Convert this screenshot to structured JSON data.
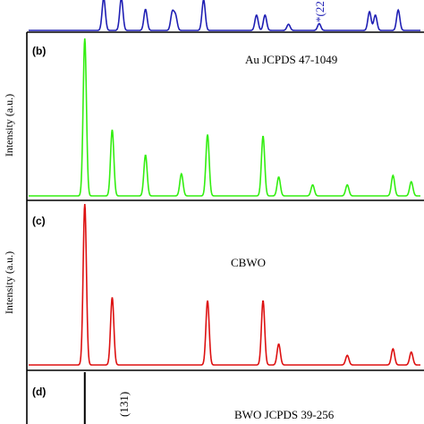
{
  "chart_data": [
    {
      "type": "line",
      "panel_label": "",
      "annotation": "",
      "ylabel": "",
      "color": "#1f1fb4",
      "peak_label": "*(22",
      "xlim": [
        20,
        80
      ],
      "peaks": [
        [
          31.5,
          0.95
        ],
        [
          34.2,
          0.95
        ],
        [
          37.9,
          0.62
        ],
        [
          42.0,
          0.52
        ],
        [
          42.5,
          0.42
        ],
        [
          46.8,
          0.9
        ],
        [
          54.9,
          0.45
        ],
        [
          56.2,
          0.45
        ],
        [
          59.8,
          0.18
        ],
        [
          64.5,
          0.2
        ],
        [
          72.2,
          0.55
        ],
        [
          73.1,
          0.45
        ],
        [
          76.6,
          0.6
        ]
      ]
    },
    {
      "type": "line",
      "panel_label": "(b)",
      "annotation": "Au JCPDS 47-1049",
      "ylabel": "Intensity (a.u.)",
      "color": "#33ee11",
      "xlim": [
        20,
        80
      ],
      "peaks": [
        [
          28.6,
          1.0
        ],
        [
          32.8,
          0.42
        ],
        [
          37.9,
          0.26
        ],
        [
          43.4,
          0.14
        ],
        [
          47.4,
          0.39
        ],
        [
          55.9,
          0.38
        ],
        [
          58.3,
          0.12
        ],
        [
          63.5,
          0.07
        ],
        [
          68.8,
          0.07
        ],
        [
          75.8,
          0.13
        ],
        [
          78.6,
          0.09
        ]
      ]
    },
    {
      "type": "line",
      "panel_label": "(c)",
      "annotation": "CBWO",
      "ylabel": "Intensity (a.u.)",
      "color": "#dd1111",
      "xlim": [
        20,
        80
      ],
      "peaks": [
        [
          28.6,
          1.0
        ],
        [
          32.8,
          0.42
        ],
        [
          47.4,
          0.4
        ],
        [
          55.9,
          0.4
        ],
        [
          58.3,
          0.13
        ],
        [
          68.8,
          0.06
        ],
        [
          75.8,
          0.1
        ],
        [
          78.6,
          0.08
        ]
      ]
    },
    {
      "type": "line",
      "panel_label": "(d)",
      "annotation": "BWO JCPDS 39-256",
      "ylabel": "",
      "color": "#000000",
      "peak_label": "(131)",
      "xlim": [
        20,
        80
      ],
      "sticks": [
        [
          28.6,
          1.0
        ]
      ]
    }
  ]
}
